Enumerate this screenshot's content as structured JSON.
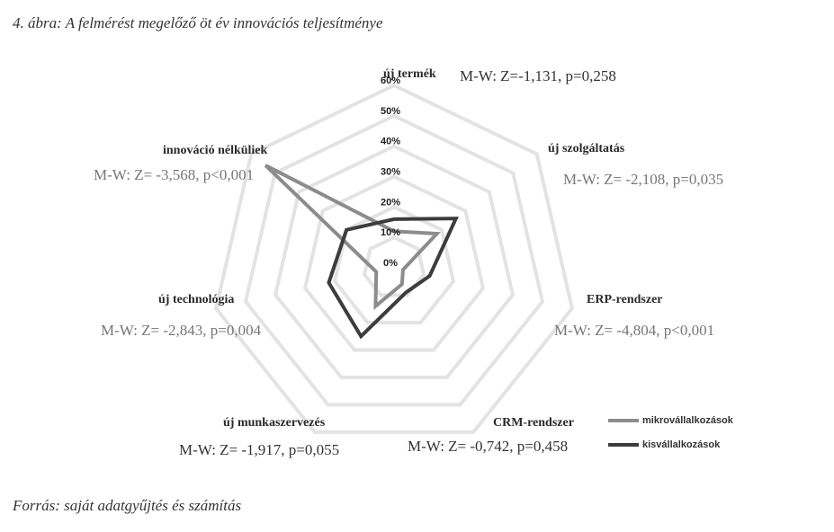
{
  "caption": "4. ábra: A felmérést megelőző öt év innovációs teljesítménye",
  "source": "Forrás: saját adatgyűjtés és számítás",
  "colors": {
    "grid": "#e3e3e3",
    "stat_dark": "#333333",
    "stat_gray": "#777777"
  },
  "chart_data": {
    "type": "radar",
    "categories": [
      "új termék",
      "új szolgáltatás",
      "ERP-rendszer",
      "CRM-rendszer",
      "új munkaszervezés",
      "új technológia",
      "innováció nélküliek"
    ],
    "stat_labels": [
      "M-W: Z=-1,131, p=0,258",
      "M-W: Z= -2,108, p=0,035",
      "M-W: Z= -4,804, p<0,001",
      "M-W: Z= -0,742, p=0,458",
      "M-W: Z= -1,917, p=0,055",
      "M-W: Z= -2,843, p=0,004",
      "M-W: Z= -3,568, p<0,001"
    ],
    "ticks": [
      "0%",
      "10%",
      "20%",
      "30%",
      "40%",
      "50%",
      "60%"
    ],
    "ylim": [
      0,
      60
    ],
    "series": [
      {
        "name": "mikrovállalkozások",
        "values": [
          12,
          18,
          3,
          6,
          14,
          6,
          54
        ],
        "color": "#8c8c8c"
      },
      {
        "name": "kisvállalkozások",
        "values": [
          16,
          26,
          12,
          9,
          25,
          22,
          20
        ],
        "color": "#3c3c3c"
      }
    ],
    "legend_position": "bottom-right",
    "grid": true
  }
}
